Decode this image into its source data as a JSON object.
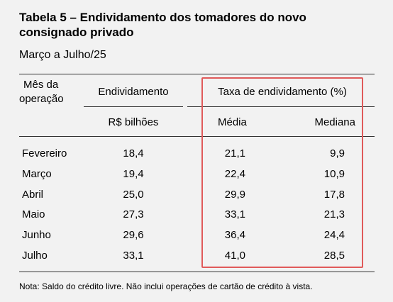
{
  "title": "Tabela 5 – Endividamento dos tomadores do novo consignado privado",
  "subtitle": "Março a Julho/25",
  "headers": {
    "month_line1": "Mês da",
    "month_line2": "operação",
    "debt": "Endividamento",
    "debt_unit": "R$ bilhões",
    "rate": "Taxa de endividamento (%)",
    "mean": "Média",
    "median": "Mediana"
  },
  "rows": [
    {
      "month": "Fevereiro",
      "debt": "18,4",
      "mean": "21,1",
      "median": "9,9"
    },
    {
      "month": "Março",
      "debt": "19,4",
      "mean": "22,4",
      "median": "10,9"
    },
    {
      "month": "Abril",
      "debt": "25,0",
      "mean": "29,9",
      "median": "17,8"
    },
    {
      "month": "Maio",
      "debt": "27,3",
      "mean": "33,1",
      "median": "21,3"
    },
    {
      "month": "Junho",
      "debt": "29,6",
      "mean": "36,4",
      "median": "24,4"
    },
    {
      "month": "Julho",
      "debt": "33,1",
      "mean": "41,0",
      "median": "28,5"
    }
  ],
  "note": "Nota: Saldo do crédito livre. Não inclui operações de cartão de crédito à vista.",
  "colors": {
    "highlight_border": "#e05a5a",
    "background": "#f2f2f2"
  }
}
